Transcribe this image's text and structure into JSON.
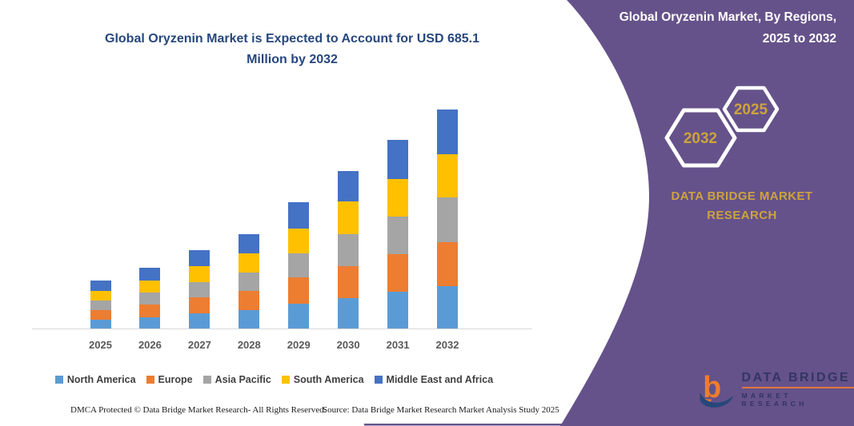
{
  "page": {
    "title_line1": "Global Oryzenin Market is Expected to Account for USD 685.1",
    "title_line2": "Million by 2032"
  },
  "side_panel": {
    "heading_line1": "Global Oryzenin Market, By Regions,",
    "heading_line2": "2025 to 2032",
    "hexagons": [
      {
        "label": "2032"
      },
      {
        "label": "2025"
      }
    ],
    "brand_line1": "DATA BRIDGE MARKET",
    "brand_line2": "RESEARCH",
    "colors": {
      "panel": "#65528A",
      "gold": "#CDA33D",
      "heading_text": "#FFFFFF"
    }
  },
  "logo": {
    "line1": "DATA BRIDGE",
    "line2": "MARKET RESEARCH",
    "colors": {
      "navy": "#28305A",
      "orange": "#EE7D2E"
    }
  },
  "footer": {
    "dmca": "DMCA Protected © Data Bridge Market Research-  All Rights Reserved.",
    "source": "Source: Data Bridge Market Research  Market Analysis Study 2025"
  },
  "chart_data": {
    "type": "bar",
    "stacked": true,
    "title": "Global Oryzenin Market is Expected to Account for USD 685.1 Million by 2032",
    "unit": "USD Million",
    "categories": [
      "2025",
      "2026",
      "2027",
      "2028",
      "2029",
      "2030",
      "2031",
      "2032"
    ],
    "series": [
      {
        "name": "North America",
        "color": "#5B9BD5",
        "values": [
          27.5,
          36,
          47,
          57,
          77.5,
          96.0,
          115,
          133.2
        ]
      },
      {
        "name": "Europe",
        "color": "#ED7D31",
        "values": [
          31.0,
          39,
          50,
          60,
          83.3,
          98.3,
          118,
          137.4
        ]
      },
      {
        "name": "Asia Pacific",
        "color": "#A5A5A5",
        "values": [
          29.0,
          37,
          48,
          58,
          73.3,
          100.0,
          117,
          139.9
        ]
      },
      {
        "name": "South America",
        "color": "#FFC000",
        "values": [
          29.2,
          38,
          49,
          59,
          78.3,
          101.8,
          118,
          134.9
        ]
      },
      {
        "name": "Middle East and Africa",
        "color": "#4472C4",
        "values": [
          33.3,
          40,
          51,
          61,
          81.8,
          96.5,
          121,
          139.7
        ]
      }
    ],
    "totals": [
      150,
      190,
      245,
      295,
      394.2,
      492.6,
      589,
      685.1
    ],
    "ylim": [
      0,
      700
    ],
    "gridlines": false,
    "y_axis_visible": false,
    "legend_position": "bottom",
    "axis_line_color": "#D9D9D9",
    "x_tick_labels": [
      "2025",
      "2026",
      "2027",
      "2028",
      "2029",
      "2030",
      "2031",
      "2032"
    ]
  }
}
